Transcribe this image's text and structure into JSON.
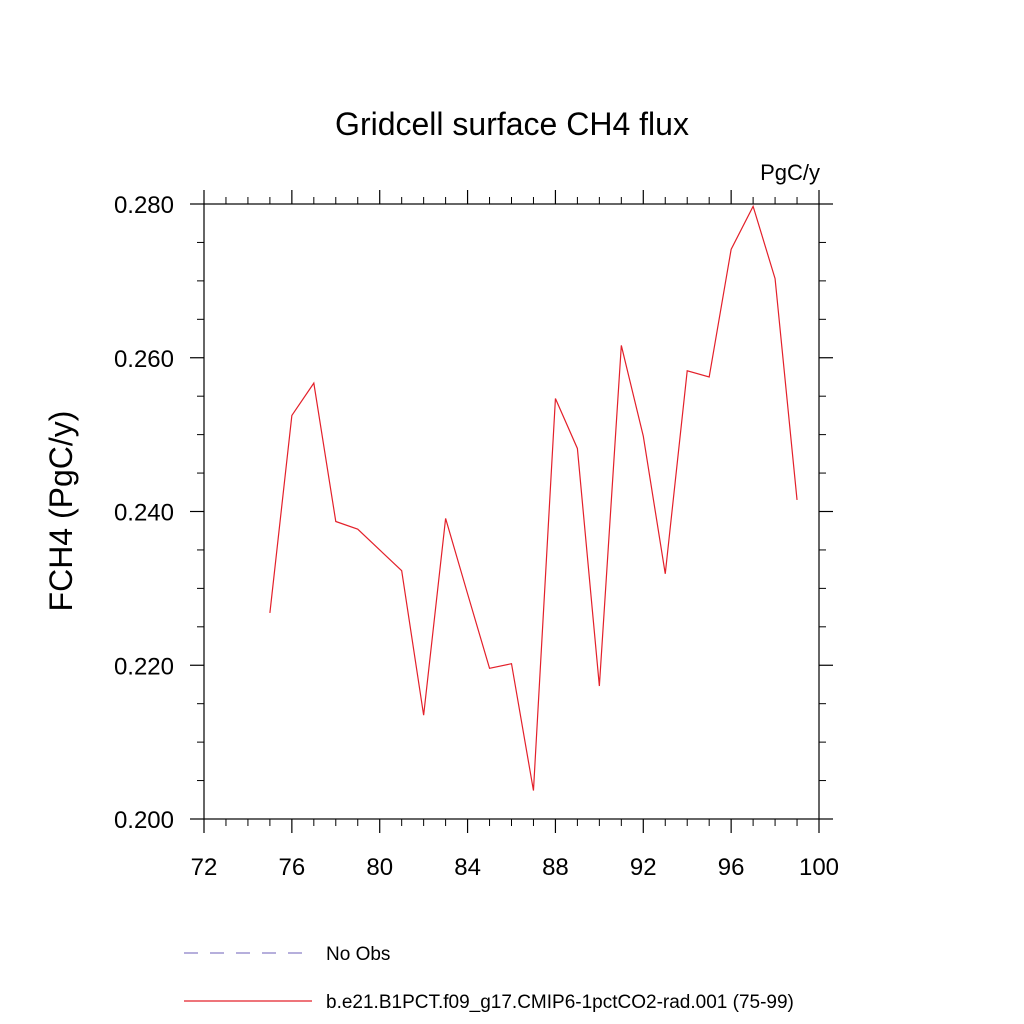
{
  "chart_data": {
    "type": "line",
    "title": "Gridcell surface CH4 flux",
    "units": "PgC/y",
    "xlabel": "",
    "ylabel": "FCH4  (PgC/y)",
    "xlim": [
      72,
      100
    ],
    "ylim": [
      0.2,
      0.28
    ],
    "x_ticks": [
      72,
      76,
      80,
      84,
      88,
      92,
      96,
      100
    ],
    "x_tick_labels": [
      "72",
      "76",
      "80",
      "84",
      "88",
      "92",
      "96",
      "100"
    ],
    "y_ticks": [
      0.2,
      0.22,
      0.24,
      0.26,
      0.28
    ],
    "y_tick_labels": [
      "0.200",
      "0.220",
      "0.240",
      "0.260",
      "0.280"
    ],
    "grid": false,
    "legend_position": "bottom",
    "series": [
      {
        "name": "No Obs",
        "style": "dashed",
        "color": "#8a7fc8",
        "x": [],
        "values": []
      },
      {
        "name": "b.e21.B1PCT.f09_g17.CMIP6-1pctCO2-rad.001 (75-99)",
        "style": "solid",
        "color": "#e3202a",
        "x": [
          75,
          76,
          77,
          78,
          79,
          80,
          81,
          82,
          83,
          84,
          85,
          86,
          87,
          88,
          89,
          90,
          91,
          92,
          93,
          94,
          95,
          96,
          97,
          98,
          99
        ],
        "values": [
          0.2268,
          0.2525,
          0.2567,
          0.2387,
          0.2377,
          0.235,
          0.2323,
          0.2135,
          0.2391,
          0.2293,
          0.2196,
          0.2202,
          0.2037,
          0.2547,
          0.2482,
          0.2173,
          0.2616,
          0.2498,
          0.2319,
          0.2583,
          0.2575,
          0.2741,
          0.2797,
          0.2703,
          0.2415
        ]
      }
    ]
  }
}
